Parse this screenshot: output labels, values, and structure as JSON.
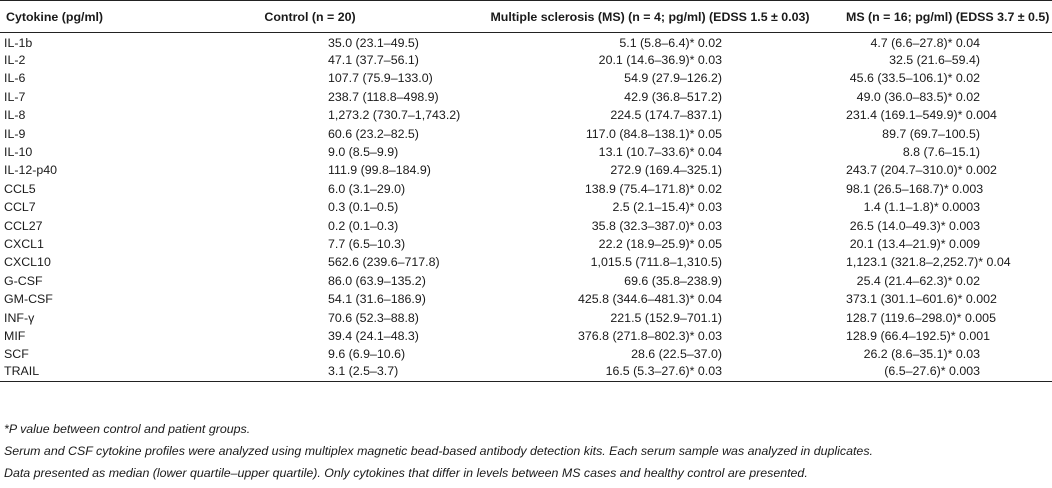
{
  "table": {
    "headers": [
      "Cytokine (pg/ml)",
      "Control (n = 20)",
      "Multiple sclerosis (MS) (n = 4; pg/ml) (EDSS 1.5 ± 0.03)",
      "MS (n = 16; pg/ml) (EDSS 3.7 ± 0.5)"
    ],
    "rows": [
      [
        "IL-1b",
        "35.0 (23.1–49.5)",
        "5.1 (5.8–6.4)* 0.02",
        "4.7 (6.6–27.8)* 0.04"
      ],
      [
        "IL-2",
        "47.1 (37.7–56.1)",
        "20.1 (14.6–36.9)* 0.03",
        "32.5 (21.6–59.4)"
      ],
      [
        "IL-6",
        "107.7 (75.9–133.0)",
        "54.9 (27.9–126.2)",
        "45.6 (33.5–106.1)* 0.02"
      ],
      [
        "IL-7",
        "238.7 (118.8–498.9)",
        "42.9 (36.8–517.2)",
        "49.0 (36.0–83.5)* 0.02"
      ],
      [
        "IL-8",
        "1,273.2 (730.7–1,743.2)",
        "224.5 (174.7–837.1)",
        "231.4 (169.1–549.9)* 0.004"
      ],
      [
        "IL-9",
        "60.6 (23.2–82.5)",
        "117.0 (84.8–138.1)* 0.05",
        "89.7 (69.7–100.5)"
      ],
      [
        "IL-10",
        "9.0 (8.5–9.9)",
        "13.1 (10.7–33.6)* 0.04",
        "8.8 (7.6–15.1)"
      ],
      [
        "IL-12-p40",
        "111.9 (99.8–184.9)",
        "272.9 (169.4–325.1)",
        "243.7 (204.7–310.0)* 0.002"
      ],
      [
        "CCL5",
        "6.0 (3.1–29.0)",
        "138.9 (75.4–171.8)* 0.02",
        "98.1 (26.5–168.7)* 0.003"
      ],
      [
        "CCL7",
        "0.3 (0.1–0.5)",
        "2.5 (2.1–15.4)* 0.03",
        "1.4 (1.1–1.8)* 0.0003"
      ],
      [
        "CCL27",
        "0.2 (0.1–0.3)",
        "35.8 (32.3–387.0)* 0.03",
        "26.5 (14.0–49.3)* 0.003"
      ],
      [
        "CXCL1",
        "7.7 (6.5–10.3)",
        "22.2 (18.9–25.9)* 0.05",
        "20.1 (13.4–21.9)* 0.009"
      ],
      [
        "CXCL10",
        "562.6 (239.6–717.8)",
        "1,015.5 (711.8–1,310.5)",
        "1,123.1 (321.8–2,252.7)* 0.04"
      ],
      [
        "G-CSF",
        "86.0 (63.9–135.2)",
        "69.6 (35.8–238.9)",
        "25.4 (21.4–62.3)* 0.02"
      ],
      [
        "GM-CSF",
        "54.1 (31.6–186.9)",
        "425.8 (344.6–481.3)* 0.04",
        "373.1 (301.1–601.6)* 0.002"
      ],
      [
        "INF-γ",
        "70.6 (52.3–88.8)",
        "221.5 (152.9–701.1)",
        "128.7 (119.6–298.0)* 0.005"
      ],
      [
        "MIF",
        "39.4 (24.1–48.3)",
        "376.8 (271.8–802.3)* 0.03",
        "128.9 (66.4–192.5)* 0.001"
      ],
      [
        "SCF",
        "9.6 (6.9–10.6)",
        "28.6 (22.5–37.0)",
        "26.2 (8.6–35.1)* 0.03"
      ],
      [
        "TRAIL",
        "3.1 (2.5–3.7)",
        "16.5 (5.3–27.6)* 0.03",
        "(6.5–27.6)* 0.003"
      ]
    ]
  },
  "notes": [
    "*P value between control and patient groups.",
    "Serum and CSF cytokine profiles were analyzed using multiplex magnetic bead-based antibody detection kits. Each serum sample was analyzed in duplicates.",
    "Data presented as median (lower quartile–upper quartile). Only cytokines that differ in levels between MS cases and healthy control are presented."
  ]
}
